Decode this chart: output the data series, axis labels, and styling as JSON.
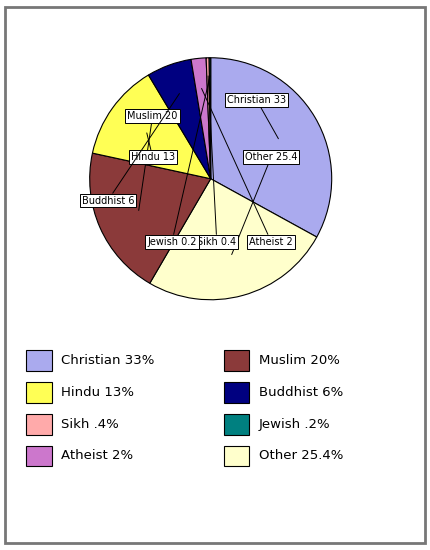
{
  "slices": [
    {
      "label": "Christian 33",
      "value": 33,
      "color": "#aaaaee"
    },
    {
      "label": "Other 25.4",
      "value": 25.4,
      "color": "#ffffcc"
    },
    {
      "label": "Muslim 20",
      "value": 20,
      "color": "#8b3a3a"
    },
    {
      "label": "Hindu 13",
      "value": 13,
      "color": "#ffff55"
    },
    {
      "label": "Buddhist 6",
      "value": 6,
      "color": "#000080"
    },
    {
      "label": "Atheist 2",
      "value": 2,
      "color": "#cc77cc"
    },
    {
      "label": "Sikh 0.4",
      "value": 0.4,
      "color": "#ffaaaa"
    },
    {
      "label": "Jewish 0.2",
      "value": 0.2,
      "color": "#008080"
    }
  ],
  "legend": [
    {
      "label": "Christian 33%",
      "color": "#aaaaee"
    },
    {
      "label": "Hindu 13%",
      "color": "#ffff55"
    },
    {
      "label": "Sikh .4%",
      "color": "#ffaaaa"
    },
    {
      "label": "Atheist 2%",
      "color": "#cc77cc"
    },
    {
      "label": "Muslim 20%",
      "color": "#8b3a3a"
    },
    {
      "label": "Buddhist 6%",
      "color": "#000080"
    },
    {
      "label": "Jewish .2%",
      "color": "#008080"
    },
    {
      "label": "Other 25.4%",
      "color": "#ffffcc"
    }
  ],
  "background_color": "#ffffff",
  "border_color": "#777777"
}
